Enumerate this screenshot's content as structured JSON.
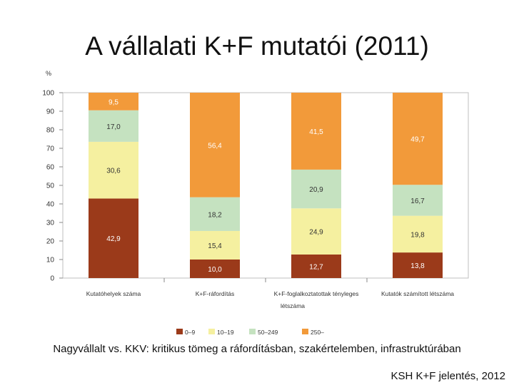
{
  "slide": {
    "title": "A vállalati K+F mutatói (2011)",
    "caption": "Nagyvállalt vs. KKV: kritikus tömeg a ráfordításban, szakértelemben, infrastruktúrában",
    "source": "KSH K+F jelentés, 2012"
  },
  "chart_data": {
    "type": "bar",
    "stacked": true,
    "unit_label": "%",
    "ylim": [
      0,
      100
    ],
    "yticks": [
      0,
      10,
      20,
      30,
      40,
      50,
      60,
      70,
      80,
      90,
      100
    ],
    "grid": false,
    "legend_position": "bottom",
    "categories": [
      "Kutatóhelyek száma",
      "K+F-ráfordítás",
      "K+F-foglalkoztatottak tényleges létszáma",
      "Kutatók számított létszáma"
    ],
    "category_lines": [
      [
        "Kutatóhelyek száma"
      ],
      [
        "K+F-ráfordítás"
      ],
      [
        "K+F-foglalkoztatottak tényleges",
        "létszáma"
      ],
      [
        "Kutatók számított létszáma"
      ]
    ],
    "series": [
      {
        "name": "0–9",
        "color": "#9b3a1a",
        "values": [
          42.9,
          10.0,
          12.7,
          13.8
        ],
        "labels": [
          "42,9",
          "10,0",
          "12,7",
          "13,8"
        ]
      },
      {
        "name": "10–19",
        "color": "#f5f0a0",
        "values": [
          30.6,
          15.4,
          24.9,
          19.8
        ],
        "labels": [
          "30,6",
          "15,4",
          "24,9",
          "19,8"
        ]
      },
      {
        "name": "50–249",
        "color": "#c5e2c0",
        "values": [
          17.0,
          18.2,
          20.9,
          16.7
        ],
        "labels": [
          "17,0",
          "18,2",
          "20,9",
          "16,7"
        ]
      },
      {
        "name": "250–",
        "color": "#f29a3a",
        "values": [
          9.5,
          56.4,
          41.5,
          49.7
        ],
        "labels": [
          "9,5",
          "56,4",
          "41,5",
          "49,7"
        ]
      }
    ]
  }
}
